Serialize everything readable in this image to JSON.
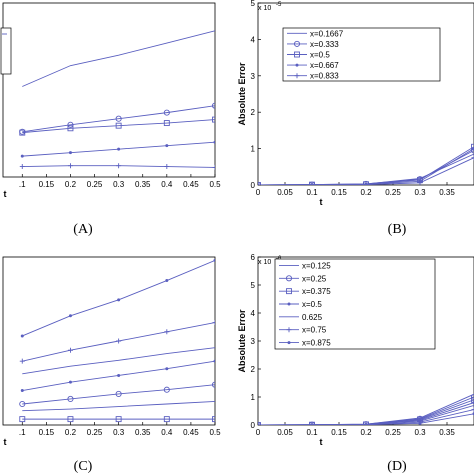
{
  "colors": {
    "series": "#5a5fc0",
    "axis": "#000000",
    "background": "#ffffff"
  },
  "chart_data": [
    {
      "id": "A",
      "panel_label": "(A)",
      "type": "line",
      "xlabel": "t",
      "ylabel": "",
      "xlim": [
        0.06,
        0.5
      ],
      "ylim": [
        0,
        10
      ],
      "xticks": [
        0.1,
        0.15,
        0.2,
        0.25,
        0.3,
        0.35,
        0.4,
        0.45,
        0.5
      ],
      "xtick_labels": [
        ".1",
        "0.15",
        "0.2",
        "0.25",
        "0.3",
        "0.35",
        "0.4",
        "0.45",
        "0.5"
      ],
      "x": [
        0.1,
        0.2,
        0.3,
        0.4,
        0.5
      ],
      "series": [
        {
          "values": [
            5.2,
            6.4,
            7.0,
            7.7,
            8.4
          ],
          "marker": "none"
        },
        {
          "values": [
            2.6,
            3.0,
            3.35,
            3.7,
            4.1
          ],
          "marker": "circle"
        },
        {
          "values": [
            2.55,
            2.8,
            2.95,
            3.1,
            3.3
          ],
          "marker": "square"
        },
        {
          "values": [
            1.2,
            1.4,
            1.6,
            1.8,
            2.0
          ],
          "marker": "dot"
        },
        {
          "values": [
            0.6,
            0.65,
            0.65,
            0.6,
            0.55
          ],
          "marker": "plus"
        }
      ]
    },
    {
      "id": "B",
      "panel_label": "(B)",
      "type": "line",
      "xlabel": "t",
      "ylabel": "Absolute Error",
      "y_exponent": "x 10",
      "y_exponent_power": "-5",
      "xlim": [
        0,
        0.4
      ],
      "ylim": [
        0,
        5
      ],
      "xticks": [
        0,
        0.05,
        0.1,
        0.15,
        0.2,
        0.25,
        0.3,
        0.35
      ],
      "xtick_labels": [
        "0",
        "0.05",
        "0.1",
        "0.15",
        "0.2",
        "0.25",
        "0.3",
        "0.35"
      ],
      "yticks": [
        0,
        1,
        2,
        3,
        4,
        5
      ],
      "ytick_labels": [
        "0",
        "1",
        "2",
        "3",
        "4",
        "5"
      ],
      "legend_position": "top-right",
      "x": [
        0,
        0.1,
        0.2,
        0.3,
        0.4
      ],
      "series": [
        {
          "name": "x=0.1667",
          "values": [
            0,
            0.01,
            0.03,
            0.18,
            0.85
          ],
          "marker": "none"
        },
        {
          "name": "x=0.333",
          "values": [
            0,
            0.01,
            0.03,
            0.16,
            0.95
          ],
          "marker": "circle"
        },
        {
          "name": "x=0.5",
          "values": [
            0,
            0.01,
            0.02,
            0.14,
            1.05
          ],
          "marker": "square"
        },
        {
          "name": "x=0.667",
          "values": [
            0,
            0.01,
            0.02,
            0.1,
            1.0
          ],
          "marker": "dot"
        },
        {
          "name": "x=0.833",
          "values": [
            0,
            0.0,
            0.01,
            0.06,
            0.75
          ],
          "marker": "plus"
        }
      ]
    },
    {
      "id": "C",
      "panel_label": "(C)",
      "type": "line",
      "xlabel": "t",
      "ylabel": "",
      "xlim": [
        0.06,
        0.5
      ],
      "ylim": [
        0,
        10
      ],
      "xticks": [
        0.1,
        0.15,
        0.2,
        0.25,
        0.3,
        0.35,
        0.4,
        0.45,
        0.5
      ],
      "xtick_labels": [
        ".1",
        "0.15",
        "0.2",
        "0.25",
        "0.3",
        "0.35",
        "0.4",
        "0.45",
        "0.5"
      ],
      "x": [
        0.1,
        0.2,
        0.3,
        0.4,
        0.5
      ],
      "series": [
        {
          "values": [
            5.3,
            6.5,
            7.45,
            8.6,
            9.8
          ],
          "marker": "dot"
        },
        {
          "values": [
            3.8,
            4.45,
            5.0,
            5.55,
            6.1
          ],
          "marker": "plus"
        },
        {
          "values": [
            3.05,
            3.5,
            3.85,
            4.25,
            4.6
          ],
          "marker": "none"
        },
        {
          "values": [
            2.05,
            2.55,
            2.95,
            3.35,
            3.8
          ],
          "marker": "dot"
        },
        {
          "values": [
            1.25,
            1.55,
            1.85,
            2.1,
            2.4
          ],
          "marker": "circle"
        },
        {
          "values": [
            0.85,
            0.95,
            1.1,
            1.25,
            1.4
          ],
          "marker": "none"
        },
        {
          "values": [
            0.35,
            0.35,
            0.35,
            0.35,
            0.35
          ],
          "marker": "square"
        }
      ]
    },
    {
      "id": "D",
      "panel_label": "(D)",
      "type": "line",
      "xlabel": "t",
      "ylabel": "Absolute Error",
      "y_exponent": "x 10",
      "y_exponent_power": "-6",
      "xlim": [
        0,
        0.4
      ],
      "ylim": [
        0,
        6
      ],
      "xticks": [
        0,
        0.05,
        0.1,
        0.15,
        0.2,
        0.25,
        0.3,
        0.35
      ],
      "xtick_labels": [
        "0",
        "0.05",
        "0.1",
        "0.15",
        "0.2",
        "0.25",
        "0.3",
        "0.35"
      ],
      "yticks": [
        0,
        1,
        2,
        3,
        4,
        5,
        6
      ],
      "ytick_labels": [
        "0",
        "1",
        "2",
        "3",
        "4",
        "5",
        "6"
      ],
      "legend_position": "top-right",
      "x": [
        0,
        0.1,
        0.2,
        0.3,
        0.4
      ],
      "series": [
        {
          "name": "x=0.125",
          "values": [
            0,
            0.01,
            0.03,
            0.25,
            1.1
          ],
          "marker": "none"
        },
        {
          "name": "x=0.25",
          "values": [
            0,
            0.01,
            0.03,
            0.22,
            1.0
          ],
          "marker": "circle"
        },
        {
          "name": "x=0.375",
          "values": [
            0,
            0.01,
            0.02,
            0.2,
            0.9
          ],
          "marker": "square"
        },
        {
          "name": "x=0.5",
          "values": [
            0,
            0.01,
            0.02,
            0.17,
            0.8
          ],
          "marker": "dot"
        },
        {
          "name": "0.625",
          "values": [
            0,
            0.0,
            0.02,
            0.14,
            0.7
          ],
          "marker": "none"
        },
        {
          "name": "x=0.75",
          "values": [
            0,
            0.0,
            0.01,
            0.1,
            0.55
          ],
          "marker": "plus"
        },
        {
          "name": "x=0.875",
          "values": [
            0,
            0.0,
            0.01,
            0.06,
            0.4
          ],
          "marker": "dot"
        }
      ]
    }
  ]
}
